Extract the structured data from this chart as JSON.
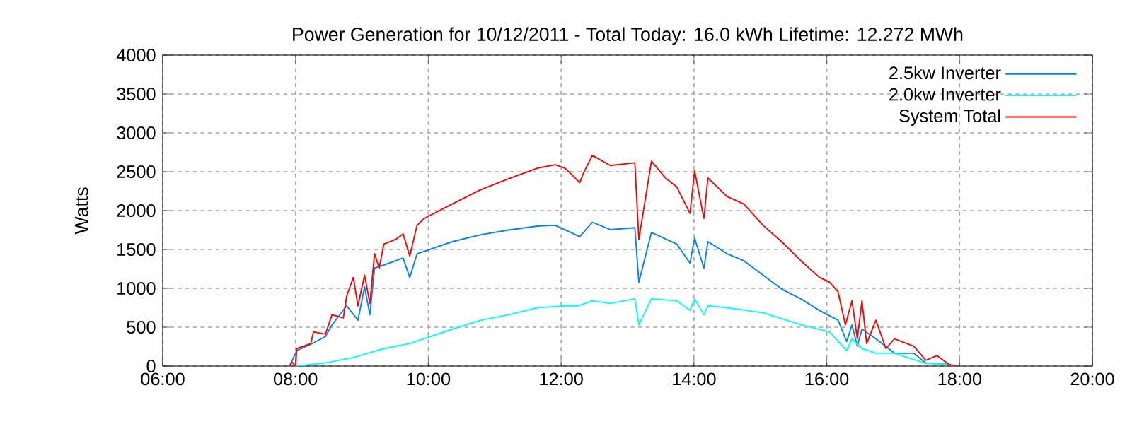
{
  "chart_data": {
    "type": "line",
    "title": "Power Generation for 10/12/2011 - Total Today: 16.0 kWh   Lifetime: 12.272 MWh",
    "ylabel": "Watts",
    "xlim": [
      6,
      20
    ],
    "xticks": [
      {
        "value": 6,
        "label": "06:00"
      },
      {
        "value": 8,
        "label": "08:00"
      },
      {
        "value": 10,
        "label": "10:00"
      },
      {
        "value": 12,
        "label": "12:00"
      },
      {
        "value": 14,
        "label": "14:00"
      },
      {
        "value": 16,
        "label": "16:00"
      },
      {
        "value": 18,
        "label": "18:00"
      },
      {
        "value": 20,
        "label": "20:00"
      }
    ],
    "ylim": [
      0,
      4000
    ],
    "yticks": [
      0,
      500,
      1000,
      1500,
      2000,
      2500,
      3000,
      3500,
      4000
    ],
    "grid": true,
    "legend": "top right",
    "line_style": "solid",
    "marker": "none",
    "series": [
      {
        "name": "2.5kw Inverter",
        "color": "#0080ff",
        "x": [
          7.91,
          8.02,
          8.23,
          8.45,
          8.55,
          8.77,
          8.94,
          9.04,
          9.12,
          9.19,
          9.33,
          9.51,
          9.62,
          9.72,
          9.83,
          10.36,
          10.79,
          11.21,
          11.64,
          11.91,
          12.28,
          12.47,
          12.74,
          13.11,
          13.17,
          13.36,
          13.74,
          13.94,
          14.01,
          14.15,
          14.21,
          14.5,
          14.75,
          15.04,
          15.32,
          15.61,
          15.89,
          16.17,
          16.3,
          16.38,
          16.46,
          16.53,
          16.74,
          17.02,
          17.31,
          17.49,
          17.84,
          17.95
        ],
        "values": [
          0,
          200,
          280,
          380,
          530,
          775,
          590,
          1020,
          660,
          1260,
          1300,
          1355,
          1390,
          1140,
          1445,
          1600,
          1690,
          1750,
          1800,
          1810,
          1665,
          1850,
          1755,
          1780,
          1080,
          1720,
          1570,
          1325,
          1645,
          1260,
          1600,
          1445,
          1355,
          1170,
          990,
          865,
          715,
          590,
          315,
          530,
          255,
          475,
          350,
          165,
          165,
          40,
          20,
          0
        ]
      },
      {
        "name": "2.0kw Inverter",
        "color": "#00ffff",
        "x": [
          8.0,
          8.45,
          8.87,
          9.33,
          9.72,
          10.36,
          10.79,
          11.21,
          11.64,
          12.06,
          12.26,
          12.47,
          12.74,
          13.11,
          13.17,
          13.36,
          13.74,
          13.94,
          14.01,
          14.15,
          14.21,
          14.5,
          15.04,
          15.61,
          16.04,
          16.3,
          16.38,
          16.53,
          16.74,
          17.02,
          17.49,
          17.84,
          17.95
        ],
        "values": [
          0,
          40,
          110,
          225,
          290,
          475,
          590,
          660,
          750,
          775,
          775,
          840,
          805,
          865,
          530,
          865,
          840,
          715,
          865,
          660,
          775,
          750,
          685,
          530,
          440,
          200,
          350,
          225,
          165,
          165,
          35,
          20,
          0
        ]
      },
      {
        "name": "System Total",
        "color": "#ff0000",
        "x": [
          7.91,
          7.95,
          8.0,
          8.02,
          8.23,
          8.27,
          8.45,
          8.55,
          8.72,
          8.77,
          8.87,
          8.94,
          9.04,
          9.12,
          9.19,
          9.26,
          9.33,
          9.51,
          9.62,
          9.72,
          9.83,
          9.94,
          10.36,
          10.79,
          11.21,
          11.64,
          11.91,
          12.06,
          12.28,
          12.34,
          12.47,
          12.74,
          13.11,
          13.17,
          13.36,
          13.57,
          13.74,
          13.94,
          14.01,
          14.15,
          14.21,
          14.5,
          14.75,
          15.04,
          15.32,
          15.61,
          15.89,
          16.04,
          16.17,
          16.28,
          16.38,
          16.46,
          16.53,
          16.6,
          16.74,
          16.89,
          17.02,
          17.31,
          17.49,
          17.66,
          17.84,
          17.95
        ],
        "values": [
          0,
          50,
          0,
          225,
          290,
          440,
          410,
          660,
          620,
          900,
          1140,
          775,
          1170,
          805,
          1445,
          1260,
          1570,
          1630,
          1700,
          1415,
          1810,
          1900,
          2085,
          2270,
          2410,
          2545,
          2590,
          2545,
          2360,
          2490,
          2710,
          2580,
          2615,
          1630,
          2635,
          2420,
          2305,
          1965,
          2510,
          1900,
          2420,
          2180,
          2085,
          1810,
          1600,
          1355,
          1140,
          1080,
          955,
          530,
          840,
          350,
          840,
          290,
          590,
          225,
          350,
          255,
          75,
          135,
          20,
          0
        ]
      }
    ]
  }
}
